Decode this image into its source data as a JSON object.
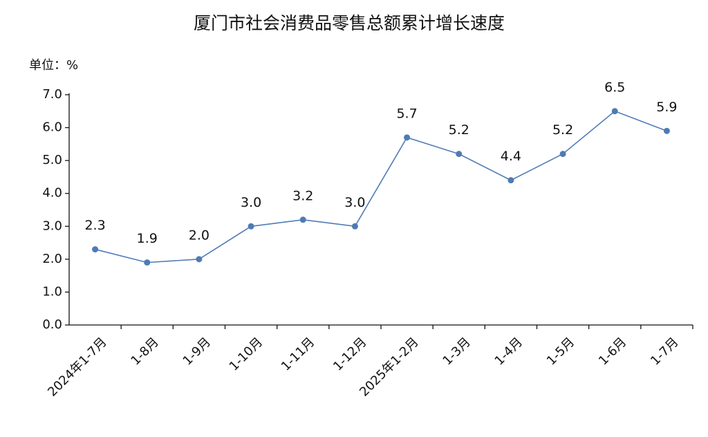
{
  "chart_data": {
    "type": "line",
    "title": "厦门市社会消费品零售总额累计增长速度",
    "unit_label": "单位：%",
    "categories": [
      "2024年1-7月",
      "1-8月",
      "1-9月",
      "1-10月",
      "1-11月",
      "1-12月",
      "2025年1-2月",
      "1-3月",
      "1-4月",
      "1-5月",
      "1-6月",
      "1-7月"
    ],
    "series": [
      {
        "name": "累计增长速度",
        "color": "#4f7bb5",
        "values": [
          2.3,
          1.9,
          2.0,
          3.0,
          3.2,
          3.0,
          5.7,
          5.2,
          4.4,
          5.2,
          6.5,
          5.9
        ],
        "value_labels": [
          "2.3",
          "1.9",
          "2.0",
          "3.0",
          "3.2",
          "3.0",
          "5.7",
          "5.2",
          "4.4",
          "5.2",
          "6.5",
          "5.9"
        ]
      }
    ],
    "ylim": [
      0,
      7
    ],
    "yticks": [
      {
        "value": 0,
        "label": "0.0"
      },
      {
        "value": 1,
        "label": "1.0"
      },
      {
        "value": 2,
        "label": "2.0"
      },
      {
        "value": 3,
        "label": "3.0"
      },
      {
        "value": 4,
        "label": "4.0"
      },
      {
        "value": 5,
        "label": "5.0"
      },
      {
        "value": 6,
        "label": "6.0"
      },
      {
        "value": 7,
        "label": "7.0"
      }
    ],
    "grid": false
  }
}
